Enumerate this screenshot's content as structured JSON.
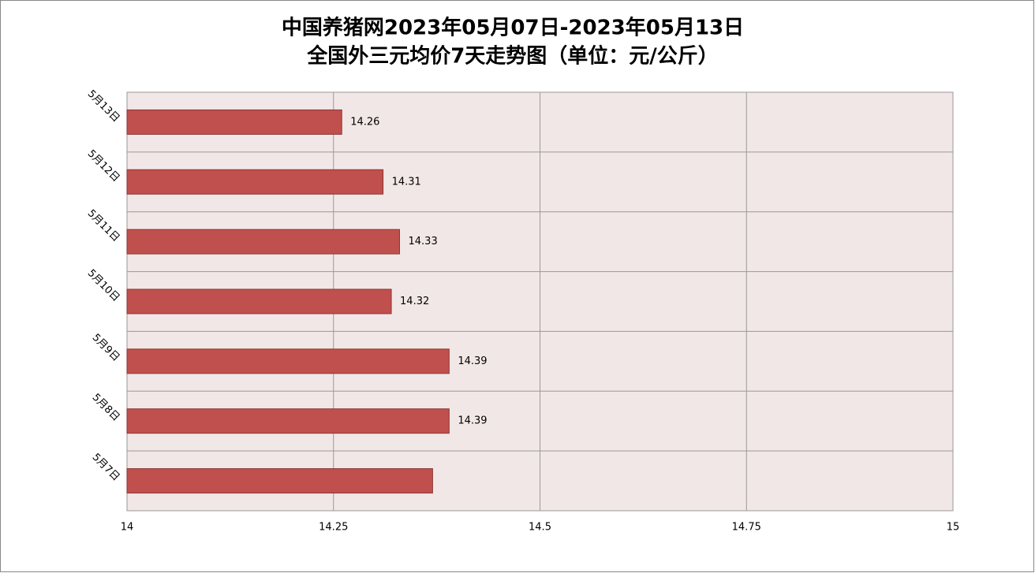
{
  "chart_data": {
    "type": "barh",
    "title": "中国养猪网2023年05月07日-2023年05月13日",
    "subtitle": "全国外三元均价7天走势图（单位：元/公斤）",
    "categories": [
      "5月7日",
      "5月8日",
      "5月9日",
      "5月10日",
      "5月11日",
      "5月12日",
      "5月13日"
    ],
    "values": [
      14.37,
      14.39,
      14.39,
      14.32,
      14.33,
      14.31,
      14.26
    ],
    "value_labels": [
      null,
      "14.39",
      "14.39",
      "14.32",
      "14.33",
      "14.31",
      "14.26"
    ],
    "color": "#c0504d",
    "xlim": [
      14,
      15
    ],
    "xticks": [
      14,
      14.25,
      14.5,
      14.75,
      15
    ],
    "grid": true
  }
}
